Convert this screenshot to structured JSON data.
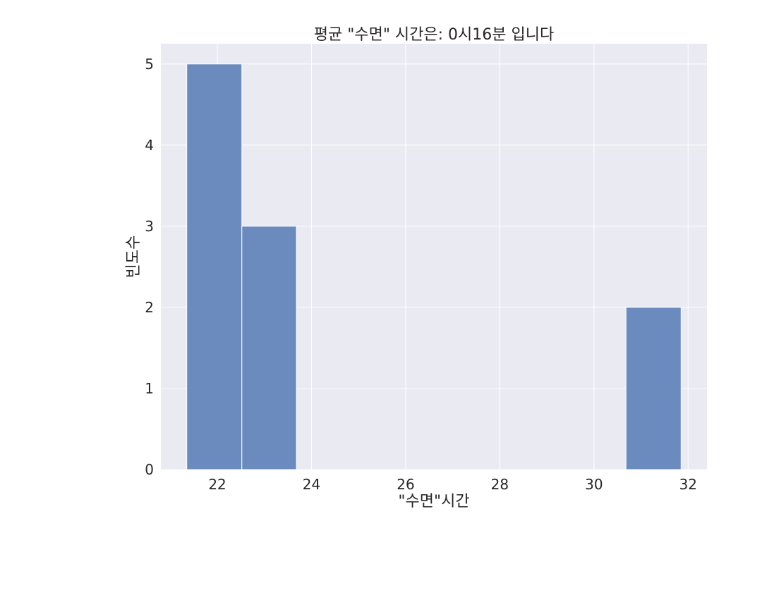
{
  "chart_data": {
    "type": "bar",
    "style": "histogram",
    "title": "평균 \"수면\" 시간은: 0시16분 입니다",
    "xlabel": "\"수면\"시간",
    "ylabel": "빈도수",
    "xlim": [
      20.8,
      32.4
    ],
    "ylim": [
      0,
      5.25
    ],
    "xticks": [
      22,
      24,
      26,
      28,
      30,
      32
    ],
    "yticks": [
      0,
      1,
      2,
      3,
      4,
      5
    ],
    "bin_edges": [
      21.35,
      22.52,
      23.68,
      24.85,
      26.02,
      27.18,
      28.35,
      29.52,
      30.68,
      31.85
    ],
    "values": [
      5,
      3,
      0,
      0,
      0,
      0,
      0,
      0,
      2
    ],
    "grid": true,
    "colors": {
      "bar": "#6b8bbf",
      "plot_background": "#eaeaf2",
      "grid": "#ffffff"
    }
  }
}
